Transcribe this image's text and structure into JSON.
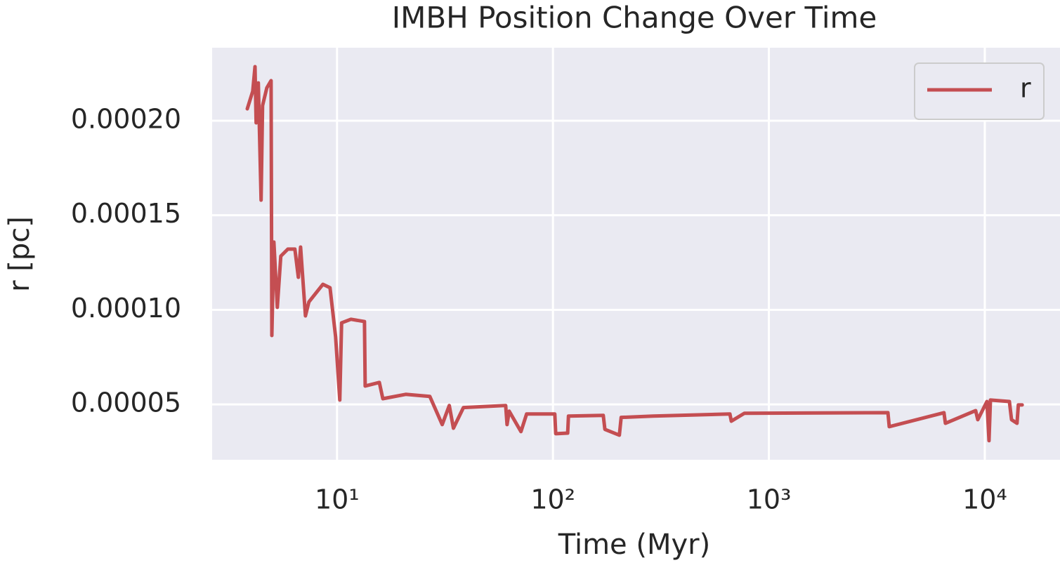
{
  "chart_data": {
    "type": "line",
    "title": "IMBH Position Change Over Time",
    "xlabel": "Time (Myr)",
    "ylabel": "r [pc]",
    "xscale": "log",
    "grid": true,
    "legend": "upper right",
    "x": [
      3.84,
      4.07,
      4.17,
      4.22,
      4.32,
      4.45,
      4.52,
      4.73,
      4.95,
      4.99,
      5.1,
      5.29,
      5.49,
      5.92,
      6.38,
      6.62,
      6.78,
      7.14,
      7.41,
      8.6,
      9.28,
      9.85,
      10.3,
      10.5,
      11.6,
      13.4,
      13.5,
      15.7,
      16.3,
      20.8,
      26.9,
      30.7,
      33.1,
      34.6,
      38.5,
      60.4,
      61.3,
      62.7,
      71.1,
      75.5,
      102,
      103,
      117,
      118,
      171,
      174,
      203,
      207,
      291,
      660,
      670,
      770,
      3560,
      3610,
      6470,
      6570,
      9070,
      9280,
      10230,
      10460,
      10620,
      13000,
      13300,
      14100,
      14300,
      14900
    ],
    "series": [
      {
        "name": "r",
        "color": "#c44e52",
        "values": [
          0.0002063,
          0.0002156,
          0.0002286,
          0.0001989,
          0.00022,
          0.000158,
          0.000208,
          0.0002174,
          0.0002212,
          8.64e-05,
          0.0001358,
          0.0001013,
          0.0001284,
          0.0001321,
          0.0001321,
          0.0001172,
          0.0001332,
          9.68e-05,
          0.0001042,
          0.0001135,
          0.0001117,
          8.57e-05,
          5.23e-05,
          9.31e-05,
          9.5e-05,
          9.38e-05,
          5.97e-05,
          6.16e-05,
          5.3e-05,
          5.53e-05,
          5.42e-05,
          3.93e-05,
          4.94e-05,
          3.74e-05,
          4.83e-05,
          4.94e-05,
          3.93e-05,
          4.64e-05,
          3.56e-05,
          4.49e-05,
          4.49e-05,
          3.45e-05,
          3.48e-05,
          4.38e-05,
          4.42e-05,
          3.68e-05,
          3.37e-05,
          4.31e-05,
          4.38e-05,
          4.49e-05,
          4.11e-05,
          4.53e-05,
          4.56e-05,
          3.82e-05,
          4.56e-05,
          4e-05,
          4.67e-05,
          4.19e-05,
          5.15e-05,
          3.08e-05,
          5.23e-05,
          5.15e-05,
          4.19e-05,
          4e-05,
          4.97e-05,
          4.97e-05
        ]
      }
    ],
    "xlim": [
      2.64,
      22300
    ],
    "ylim": [
      2.07e-05,
      0.0002386
    ],
    "xticks": [
      {
        "value": 10,
        "label": "10¹"
      },
      {
        "value": 100,
        "label": "10²"
      },
      {
        "value": 1000,
        "label": "10³"
      },
      {
        "value": 10000,
        "label": "10⁴"
      }
    ],
    "yticks": [
      {
        "value": 5e-05,
        "label": "0.00005"
      },
      {
        "value": 0.0001,
        "label": "0.00010"
      },
      {
        "value": 0.00015,
        "label": "0.00015"
      },
      {
        "value": 0.0002,
        "label": "0.00020"
      }
    ]
  }
}
